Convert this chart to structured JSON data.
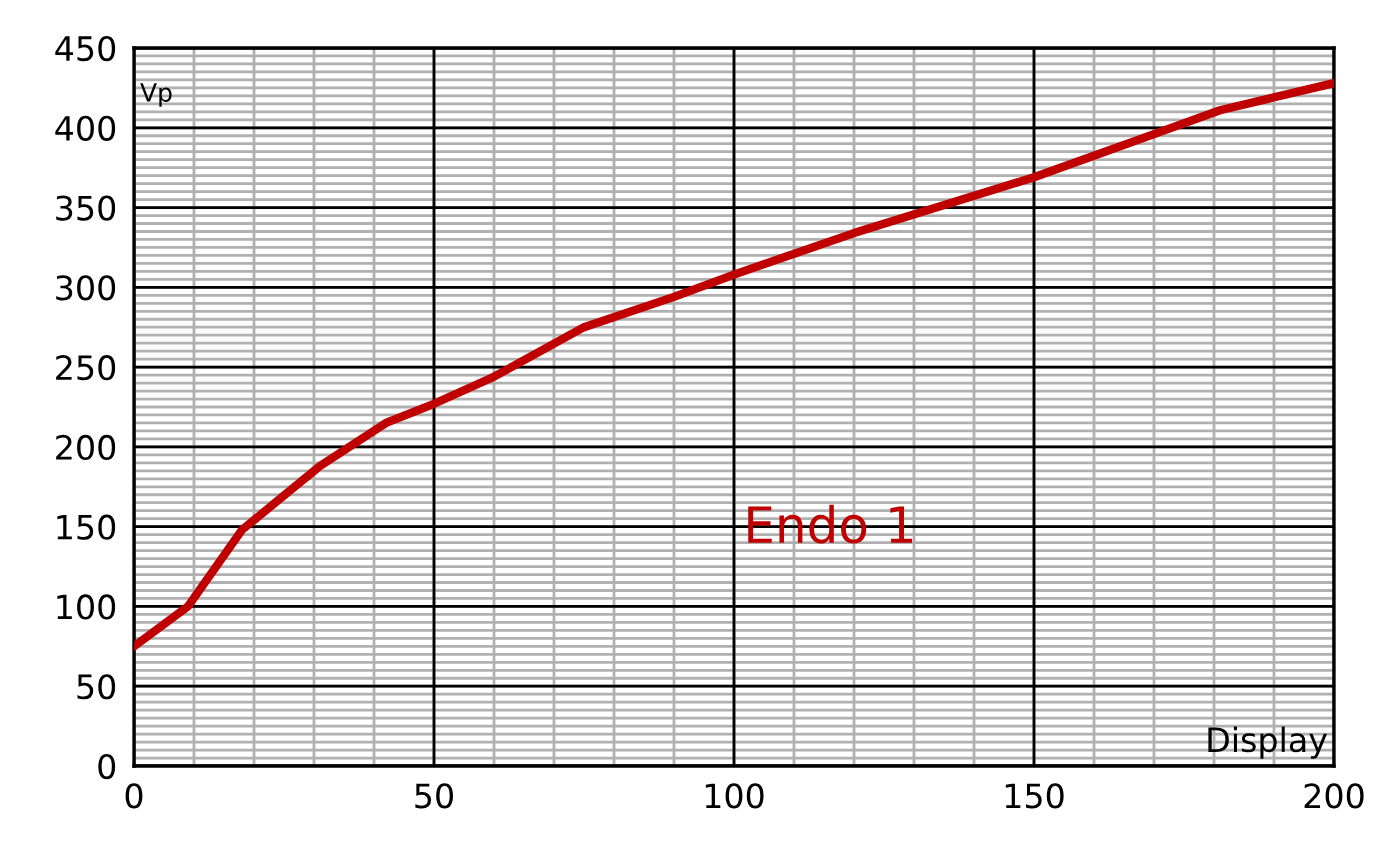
{
  "chart_data": {
    "type": "line",
    "xlabel": "Display",
    "ylabel": "Vp",
    "x": [
      0,
      9,
      18,
      31,
      42,
      50,
      60,
      75,
      90,
      100,
      120,
      150,
      170,
      181,
      200
    ],
    "series": [
      {
        "color": "#c00000",
        "values": [
          75,
          100,
          148,
          188,
          215,
          227,
          244,
          275,
          294,
          308,
          334,
          369,
          396,
          411,
          428
        ]
      }
    ],
    "xlim": [
      0,
      200
    ],
    "ylim": [
      0,
      450
    ],
    "xticks": [
      0,
      50,
      100,
      150,
      200
    ],
    "yticks": [
      0,
      50,
      100,
      150,
      200,
      250,
      300,
      350,
      400,
      450
    ],
    "grid": true,
    "marker": "none",
    "line_style": "solid",
    "annotations": [
      "Endo 1"
    ]
  }
}
